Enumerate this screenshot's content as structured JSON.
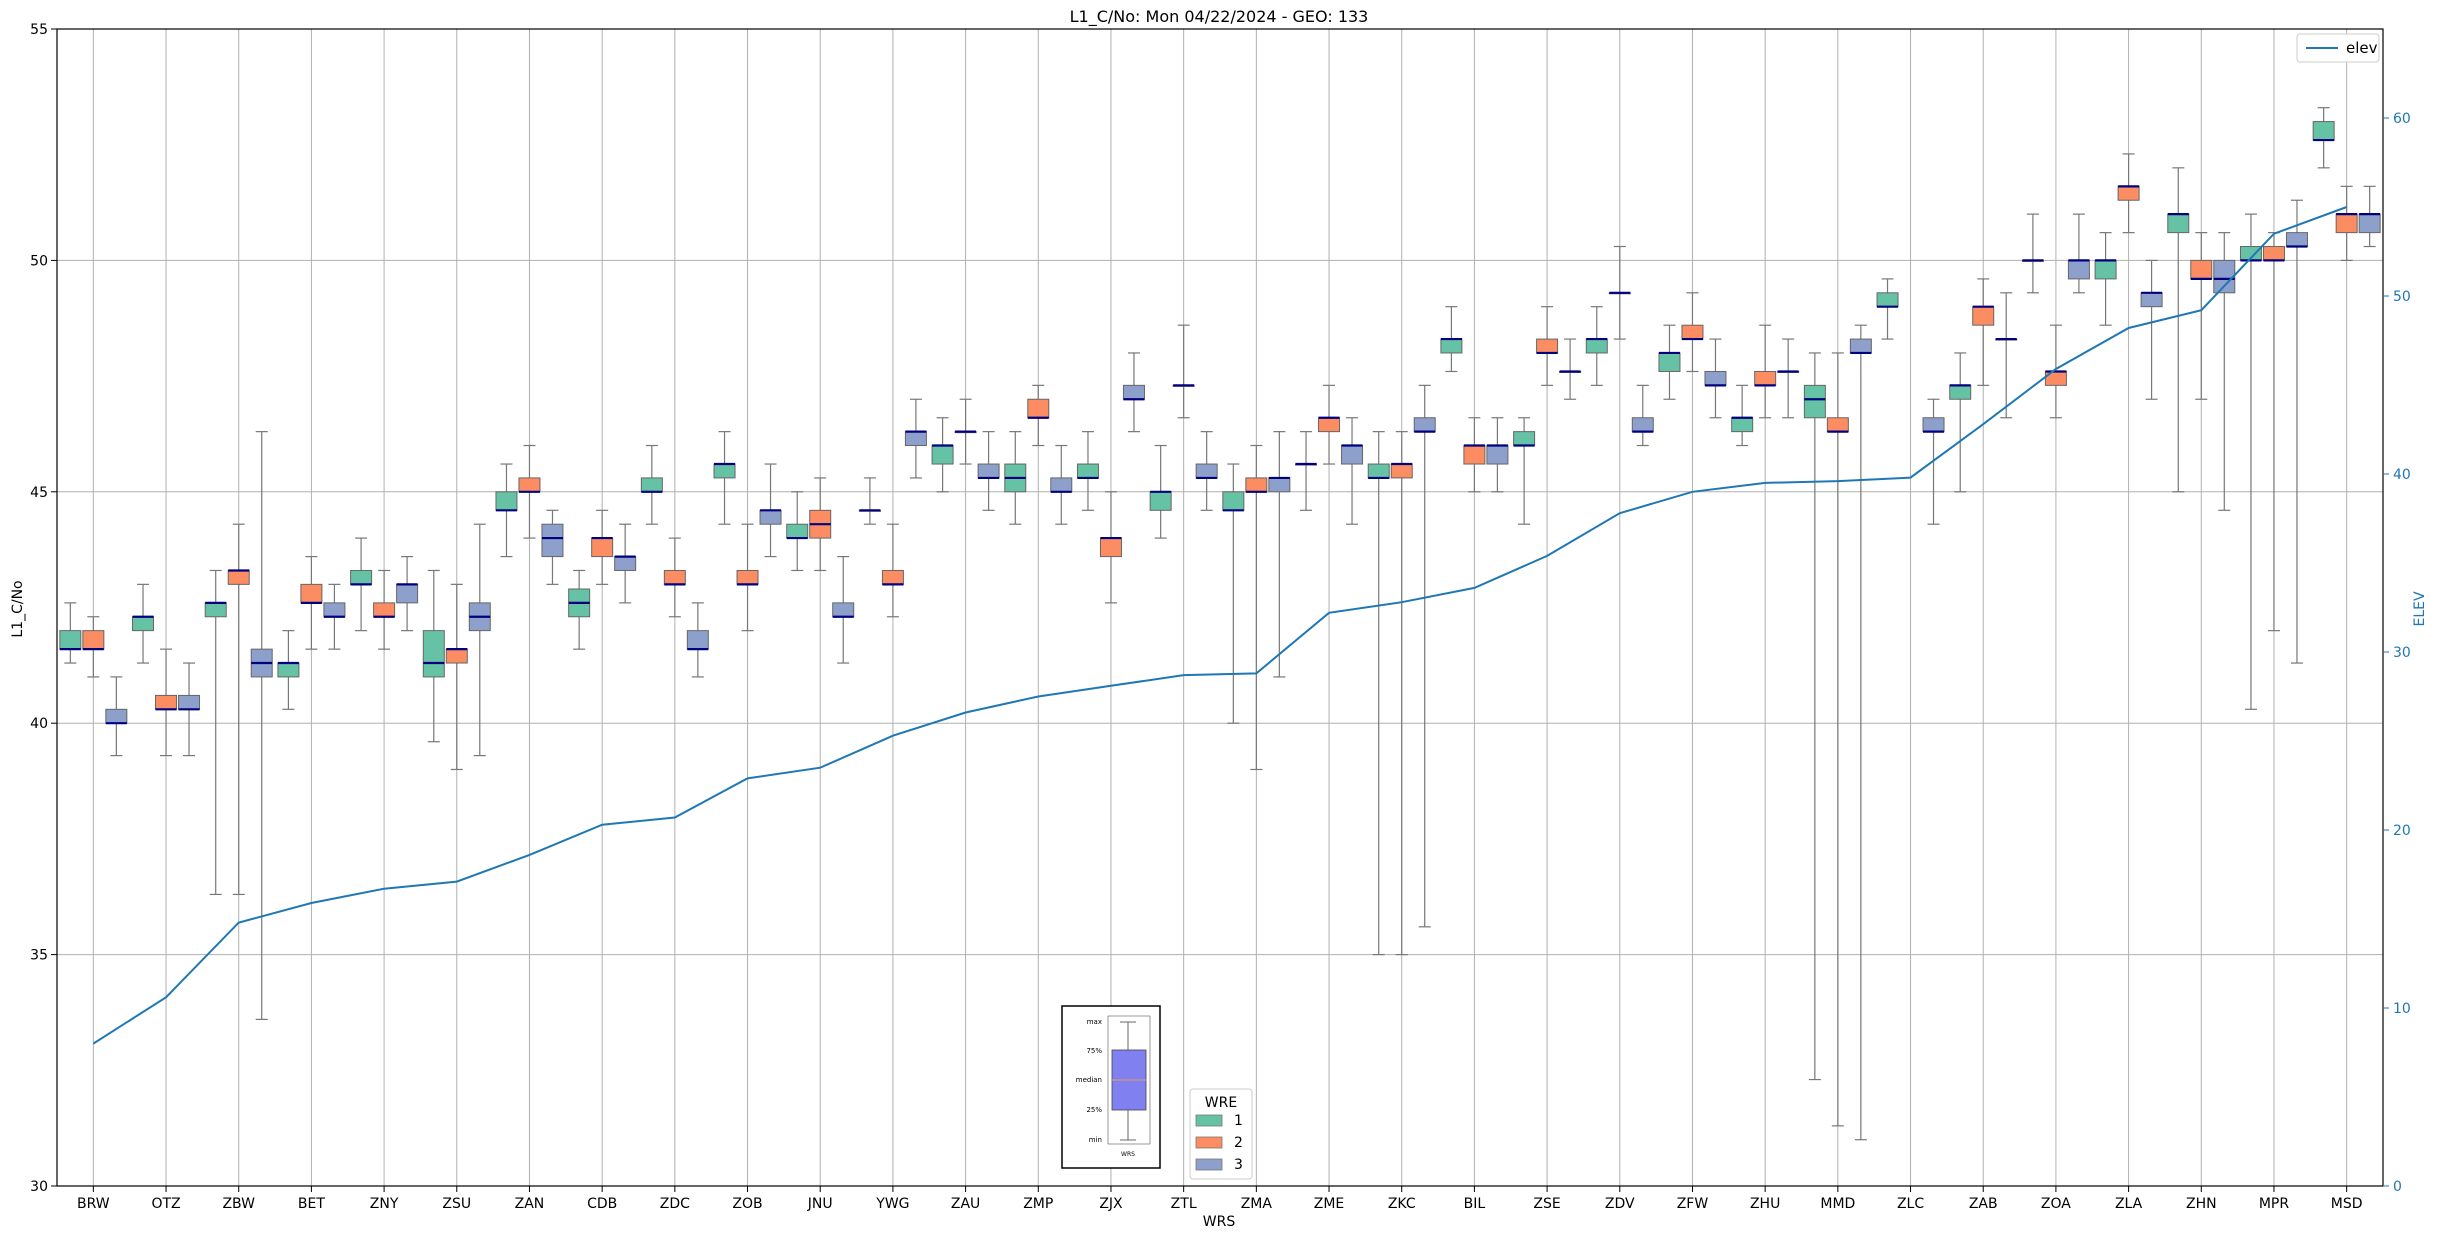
{
  "chart_data": {
    "type": "box",
    "title": "L1_C/No: Mon 04/22/2024 - GEO: 133",
    "xlabel": "WRS",
    "ylabel": "L1_C/No",
    "y2label": "ELEV",
    "ylim": [
      30,
      55
    ],
    "y2lim": [
      0,
      65
    ],
    "yticks": [
      30,
      35,
      40,
      45,
      50,
      55
    ],
    "y2ticks": [
      0,
      10,
      20,
      30,
      40,
      50,
      60
    ],
    "grid": true,
    "categories": [
      "BRW",
      "OTZ",
      "ZBW",
      "BET",
      "ZNY",
      "ZSU",
      "ZAN",
      "CDB",
      "ZDC",
      "ZOB",
      "JNU",
      "YWG",
      "ZAU",
      "ZMP",
      "ZJX",
      "ZTL",
      "ZMA",
      "ZME",
      "ZKC",
      "BIL",
      "ZSE",
      "ZDV",
      "ZFW",
      "ZHU",
      "MMD",
      "ZLC",
      "ZAB",
      "ZOA",
      "ZLA",
      "ZHN",
      "MPR",
      "MSD"
    ],
    "wre_legend": {
      "title": "WRE",
      "entries": [
        {
          "label": "1",
          "color": "#66c2a5"
        },
        {
          "label": "2",
          "color": "#fc8d62"
        },
        {
          "label": "3",
          "color": "#8da0cb"
        }
      ]
    },
    "line_legend": {
      "label": "elev",
      "color": "#1f77b4",
      "placement": "top-right"
    },
    "inset_legend": {
      "labels": [
        "max",
        "75%",
        "median",
        "25%",
        "min"
      ],
      "xlabel": "WRS"
    },
    "elevation": [
      8.0,
      10.6,
      14.8,
      15.9,
      16.7,
      17.1,
      18.6,
      20.3,
      20.7,
      22.9,
      23.5,
      25.3,
      26.6,
      27.5,
      28.1,
      28.7,
      28.8,
      32.2,
      32.8,
      33.6,
      35.4,
      37.8,
      39.0,
      39.5,
      39.6,
      39.8,
      42.8,
      45.9,
      48.2,
      49.2,
      53.5,
      55.0
    ],
    "boxes": [
      {
        "wrs": "BRW",
        "wre": 1,
        "min": 41.3,
        "q1": 41.6,
        "median": 41.6,
        "q3": 42.0,
        "max": 42.6
      },
      {
        "wrs": "BRW",
        "wre": 2,
        "min": 41.0,
        "q1": 41.6,
        "median": 41.6,
        "q3": 42.0,
        "max": 42.3
      },
      {
        "wrs": "BRW",
        "wre": 3,
        "min": 39.3,
        "q1": 40.0,
        "median": 40.0,
        "q3": 40.3,
        "max": 41.0
      },
      {
        "wrs": "OTZ",
        "wre": 1,
        "min": 41.3,
        "q1": 42.0,
        "median": 42.3,
        "q3": 42.3,
        "max": 43.0
      },
      {
        "wrs": "OTZ",
        "wre": 2,
        "min": 39.3,
        "q1": 40.3,
        "median": 40.3,
        "q3": 40.6,
        "max": 41.6
      },
      {
        "wrs": "OTZ",
        "wre": 3,
        "min": 39.3,
        "q1": 40.3,
        "median": 40.3,
        "q3": 40.6,
        "max": 41.3
      },
      {
        "wrs": "ZBW",
        "wre": 1,
        "min": 36.3,
        "q1": 42.3,
        "median": 42.6,
        "q3": 42.6,
        "max": 43.3
      },
      {
        "wrs": "ZBW",
        "wre": 2,
        "min": 36.3,
        "q1": 43.0,
        "median": 43.3,
        "q3": 43.3,
        "max": 44.3
      },
      {
        "wrs": "ZBW",
        "wre": 3,
        "min": 33.6,
        "q1": 41.0,
        "median": 41.3,
        "q3": 41.6,
        "max": 46.3
      },
      {
        "wrs": "BET",
        "wre": 1,
        "min": 40.3,
        "q1": 41.0,
        "median": 41.3,
        "q3": 41.3,
        "max": 42.0
      },
      {
        "wrs": "BET",
        "wre": 2,
        "min": 41.6,
        "q1": 42.6,
        "median": 42.6,
        "q3": 43.0,
        "max": 43.6
      },
      {
        "wrs": "BET",
        "wre": 3,
        "min": 41.6,
        "q1": 42.3,
        "median": 42.3,
        "q3": 42.6,
        "max": 43.0
      },
      {
        "wrs": "ZNY",
        "wre": 1,
        "min": 42.0,
        "q1": 43.0,
        "median": 43.0,
        "q3": 43.3,
        "max": 44.0
      },
      {
        "wrs": "ZNY",
        "wre": 2,
        "min": 41.6,
        "q1": 42.3,
        "median": 42.3,
        "q3": 42.6,
        "max": 43.3
      },
      {
        "wrs": "ZNY",
        "wre": 3,
        "min": 42.0,
        "q1": 42.6,
        "median": 43.0,
        "q3": 43.0,
        "max": 43.6
      },
      {
        "wrs": "ZSU",
        "wre": 1,
        "min": 39.6,
        "q1": 41.0,
        "median": 41.3,
        "q3": 42.0,
        "max": 43.3
      },
      {
        "wrs": "ZSU",
        "wre": 2,
        "min": 39.0,
        "q1": 41.3,
        "median": 41.6,
        "q3": 41.6,
        "max": 43.0
      },
      {
        "wrs": "ZSU",
        "wre": 3,
        "min": 39.3,
        "q1": 42.0,
        "median": 42.3,
        "q3": 42.6,
        "max": 44.3
      },
      {
        "wrs": "ZAN",
        "wre": 1,
        "min": 43.6,
        "q1": 44.6,
        "median": 44.6,
        "q3": 45.0,
        "max": 45.6
      },
      {
        "wrs": "ZAN",
        "wre": 2,
        "min": 44.0,
        "q1": 45.0,
        "median": 45.0,
        "q3": 45.3,
        "max": 46.0
      },
      {
        "wrs": "ZAN",
        "wre": 3,
        "min": 43.0,
        "q1": 43.6,
        "median": 44.0,
        "q3": 44.3,
        "max": 44.6
      },
      {
        "wrs": "CDB",
        "wre": 1,
        "min": 41.6,
        "q1": 42.3,
        "median": 42.6,
        "q3": 42.9,
        "max": 43.3
      },
      {
        "wrs": "CDB",
        "wre": 2,
        "min": 43.0,
        "q1": 43.6,
        "median": 44.0,
        "q3": 44.0,
        "max": 44.6
      },
      {
        "wrs": "CDB",
        "wre": 3,
        "min": 42.6,
        "q1": 43.3,
        "median": 43.6,
        "q3": 43.6,
        "max": 44.3
      },
      {
        "wrs": "ZDC",
        "wre": 1,
        "min": 44.3,
        "q1": 45.0,
        "median": 45.0,
        "q3": 45.3,
        "max": 46.0
      },
      {
        "wrs": "ZDC",
        "wre": 2,
        "min": 42.3,
        "q1": 43.0,
        "median": 43.0,
        "q3": 43.3,
        "max": 44.0
      },
      {
        "wrs": "ZDC",
        "wre": 3,
        "min": 41.0,
        "q1": 41.6,
        "median": 41.6,
        "q3": 42.0,
        "max": 42.6
      },
      {
        "wrs": "ZOB",
        "wre": 1,
        "min": 44.3,
        "q1": 45.3,
        "median": 45.6,
        "q3": 45.6,
        "max": 46.3
      },
      {
        "wrs": "ZOB",
        "wre": 2,
        "min": 42.0,
        "q1": 43.0,
        "median": 43.0,
        "q3": 43.3,
        "max": 44.3
      },
      {
        "wrs": "ZOB",
        "wre": 3,
        "min": 43.6,
        "q1": 44.3,
        "median": 44.6,
        "q3": 44.6,
        "max": 45.6
      },
      {
        "wrs": "JNU",
        "wre": 1,
        "min": 43.3,
        "q1": 44.0,
        "median": 44.0,
        "q3": 44.3,
        "max": 45.0
      },
      {
        "wrs": "JNU",
        "wre": 2,
        "min": 43.3,
        "q1": 44.0,
        "median": 44.3,
        "q3": 44.6,
        "max": 45.3
      },
      {
        "wrs": "JNU",
        "wre": 3,
        "min": 41.3,
        "q1": 42.3,
        "median": 42.3,
        "q3": 42.6,
        "max": 43.6
      },
      {
        "wrs": "YWG",
        "wre": 1,
        "min": 44.3,
        "q1": 44.6,
        "median": 44.6,
        "q3": 44.6,
        "max": 45.3
      },
      {
        "wrs": "YWG",
        "wre": 2,
        "min": 42.3,
        "q1": 43.0,
        "median": 43.0,
        "q3": 43.3,
        "max": 44.3
      },
      {
        "wrs": "YWG",
        "wre": 3,
        "min": 45.3,
        "q1": 46.0,
        "median": 46.3,
        "q3": 46.3,
        "max": 47.0
      },
      {
        "wrs": "ZAU",
        "wre": 1,
        "min": 45.0,
        "q1": 45.6,
        "median": 46.0,
        "q3": 46.0,
        "max": 46.6
      },
      {
        "wrs": "ZAU",
        "wre": 2,
        "min": 45.6,
        "q1": 46.3,
        "median": 46.3,
        "q3": 46.3,
        "max": 47.0
      },
      {
        "wrs": "ZAU",
        "wre": 3,
        "min": 44.6,
        "q1": 45.3,
        "median": 45.3,
        "q3": 45.6,
        "max": 46.3
      },
      {
        "wrs": "ZMP",
        "wre": 1,
        "min": 44.3,
        "q1": 45.0,
        "median": 45.3,
        "q3": 45.6,
        "max": 46.3
      },
      {
        "wrs": "ZMP",
        "wre": 2,
        "min": 46.0,
        "q1": 46.6,
        "median": 46.6,
        "q3": 47.0,
        "max": 47.3
      },
      {
        "wrs": "ZMP",
        "wre": 3,
        "min": 44.3,
        "q1": 45.0,
        "median": 45.0,
        "q3": 45.3,
        "max": 46.0
      },
      {
        "wrs": "ZJX",
        "wre": 1,
        "min": 44.6,
        "q1": 45.3,
        "median": 45.3,
        "q3": 45.6,
        "max": 46.3
      },
      {
        "wrs": "ZJX",
        "wre": 2,
        "min": 42.6,
        "q1": 43.6,
        "median": 44.0,
        "q3": 44.0,
        "max": 45.0
      },
      {
        "wrs": "ZJX",
        "wre": 3,
        "min": 46.3,
        "q1": 47.0,
        "median": 47.0,
        "q3": 47.3,
        "max": 48.0
      },
      {
        "wrs": "ZTL",
        "wre": 1,
        "min": 44.0,
        "q1": 44.6,
        "median": 45.0,
        "q3": 45.0,
        "max": 46.0
      },
      {
        "wrs": "ZTL",
        "wre": 2,
        "min": 46.6,
        "q1": 47.3,
        "median": 47.3,
        "q3": 47.3,
        "max": 48.6
      },
      {
        "wrs": "ZTL",
        "wre": 3,
        "min": 44.6,
        "q1": 45.3,
        "median": 45.3,
        "q3": 45.6,
        "max": 46.3
      },
      {
        "wrs": "ZMA",
        "wre": 1,
        "min": 40.0,
        "q1": 44.6,
        "median": 44.6,
        "q3": 45.0,
        "max": 45.6
      },
      {
        "wrs": "ZMA",
        "wre": 2,
        "min": 39.0,
        "q1": 45.0,
        "median": 45.0,
        "q3": 45.3,
        "max": 46.0
      },
      {
        "wrs": "ZMA",
        "wre": 3,
        "min": 41.0,
        "q1": 45.0,
        "median": 45.3,
        "q3": 45.3,
        "max": 46.3
      },
      {
        "wrs": "ZME",
        "wre": 1,
        "min": 44.6,
        "q1": 45.6,
        "median": 45.6,
        "q3": 45.6,
        "max": 46.3
      },
      {
        "wrs": "ZME",
        "wre": 2,
        "min": 45.6,
        "q1": 46.3,
        "median": 46.6,
        "q3": 46.6,
        "max": 47.3
      },
      {
        "wrs": "ZME",
        "wre": 3,
        "min": 44.3,
        "q1": 45.6,
        "median": 46.0,
        "q3": 46.0,
        "max": 46.6
      },
      {
        "wrs": "ZKC",
        "wre": 1,
        "min": 35.0,
        "q1": 45.3,
        "median": 45.3,
        "q3": 45.6,
        "max": 46.3
      },
      {
        "wrs": "ZKC",
        "wre": 2,
        "min": 35.0,
        "q1": 45.3,
        "median": 45.6,
        "q3": 45.6,
        "max": 46.3
      },
      {
        "wrs": "ZKC",
        "wre": 3,
        "min": 35.6,
        "q1": 46.3,
        "median": 46.3,
        "q3": 46.6,
        "max": 47.3
      },
      {
        "wrs": "BIL",
        "wre": 1,
        "min": 47.6,
        "q1": 48.0,
        "median": 48.3,
        "q3": 48.3,
        "max": 49.0
      },
      {
        "wrs": "BIL",
        "wre": 2,
        "min": 45.0,
        "q1": 45.6,
        "median": 46.0,
        "q3": 46.0,
        "max": 46.6
      },
      {
        "wrs": "BIL",
        "wre": 3,
        "min": 45.0,
        "q1": 45.6,
        "median": 46.0,
        "q3": 46.0,
        "max": 46.6
      },
      {
        "wrs": "ZSE",
        "wre": 1,
        "min": 44.3,
        "q1": 46.0,
        "median": 46.0,
        "q3": 46.3,
        "max": 46.6
      },
      {
        "wrs": "ZSE",
        "wre": 2,
        "min": 47.3,
        "q1": 48.0,
        "median": 48.0,
        "q3": 48.3,
        "max": 49.0
      },
      {
        "wrs": "ZSE",
        "wre": 3,
        "min": 47.0,
        "q1": 47.6,
        "median": 47.6,
        "q3": 47.6,
        "max": 48.3
      },
      {
        "wrs": "ZDV",
        "wre": 1,
        "min": 47.3,
        "q1": 48.0,
        "median": 48.3,
        "q3": 48.3,
        "max": 49.0
      },
      {
        "wrs": "ZDV",
        "wre": 2,
        "min": 48.3,
        "q1": 49.3,
        "median": 49.3,
        "q3": 49.3,
        "max": 50.3
      },
      {
        "wrs": "ZDV",
        "wre": 3,
        "min": 46.0,
        "q1": 46.3,
        "median": 46.3,
        "q3": 46.6,
        "max": 47.3
      },
      {
        "wrs": "ZFW",
        "wre": 1,
        "min": 47.0,
        "q1": 47.6,
        "median": 48.0,
        "q3": 48.0,
        "max": 48.6
      },
      {
        "wrs": "ZFW",
        "wre": 2,
        "min": 47.6,
        "q1": 48.3,
        "median": 48.3,
        "q3": 48.6,
        "max": 49.3
      },
      {
        "wrs": "ZFW",
        "wre": 3,
        "min": 46.6,
        "q1": 47.3,
        "median": 47.3,
        "q3": 47.6,
        "max": 48.3
      },
      {
        "wrs": "ZHU",
        "wre": 1,
        "min": 46.0,
        "q1": 46.3,
        "median": 46.6,
        "q3": 46.6,
        "max": 47.3
      },
      {
        "wrs": "ZHU",
        "wre": 2,
        "min": 46.6,
        "q1": 47.3,
        "median": 47.3,
        "q3": 47.6,
        "max": 48.6
      },
      {
        "wrs": "ZHU",
        "wre": 3,
        "min": 46.6,
        "q1": 47.6,
        "median": 47.6,
        "q3": 47.6,
        "max": 48.3
      },
      {
        "wrs": "MMD",
        "wre": 1,
        "min": 32.3,
        "q1": 46.6,
        "median": 47.0,
        "q3": 47.3,
        "max": 48.0
      },
      {
        "wrs": "MMD",
        "wre": 2,
        "min": 31.3,
        "q1": 46.3,
        "median": 46.3,
        "q3": 46.6,
        "max": 48.0
      },
      {
        "wrs": "MMD",
        "wre": 3,
        "min": 31.0,
        "q1": 48.0,
        "median": 48.0,
        "q3": 48.3,
        "max": 48.6
      },
      {
        "wrs": "ZLC",
        "wre": 1,
        "min": 48.3,
        "q1": 49.0,
        "median": 49.0,
        "q3": 49.3,
        "max": 49.6
      },
      {
        "wrs": "ZLC",
        "wre": 2,
        "min": null,
        "q1": null,
        "median": null,
        "q3": null,
        "max": null
      },
      {
        "wrs": "ZLC",
        "wre": 3,
        "min": 44.3,
        "q1": 46.3,
        "median": 46.3,
        "q3": 46.6,
        "max": 47.0
      },
      {
        "wrs": "ZAB",
        "wre": 1,
        "min": 45.0,
        "q1": 47.0,
        "median": 47.3,
        "q3": 47.3,
        "max": 48.0
      },
      {
        "wrs": "ZAB",
        "wre": 2,
        "min": 47.3,
        "q1": 48.6,
        "median": 49.0,
        "q3": 49.0,
        "max": 49.6
      },
      {
        "wrs": "ZAB",
        "wre": 3,
        "min": 46.6,
        "q1": 48.3,
        "median": 48.3,
        "q3": 48.3,
        "max": 49.3
      },
      {
        "wrs": "ZOA",
        "wre": 1,
        "min": 49.3,
        "q1": 50.0,
        "median": 50.0,
        "q3": 50.0,
        "max": 51.0
      },
      {
        "wrs": "ZOA",
        "wre": 2,
        "min": 46.6,
        "q1": 47.3,
        "median": 47.6,
        "q3": 47.6,
        "max": 48.6
      },
      {
        "wrs": "ZOA",
        "wre": 3,
        "min": 49.3,
        "q1": 49.6,
        "median": 50.0,
        "q3": 50.0,
        "max": 51.0
      },
      {
        "wrs": "ZLA",
        "wre": 1,
        "min": 48.6,
        "q1": 49.6,
        "median": 50.0,
        "q3": 50.0,
        "max": 50.6
      },
      {
        "wrs": "ZLA",
        "wre": 2,
        "min": 50.6,
        "q1": 51.3,
        "median": 51.6,
        "q3": 51.6,
        "max": 52.3
      },
      {
        "wrs": "ZLA",
        "wre": 3,
        "min": 47.0,
        "q1": 49.0,
        "median": 49.3,
        "q3": 49.3,
        "max": 50.0
      },
      {
        "wrs": "ZHN",
        "wre": 1,
        "min": 45.0,
        "q1": 50.6,
        "median": 51.0,
        "q3": 51.0,
        "max": 52.0
      },
      {
        "wrs": "ZHN",
        "wre": 2,
        "min": 47.0,
        "q1": 49.6,
        "median": 49.6,
        "q3": 50.0,
        "max": 50.6
      },
      {
        "wrs": "ZHN",
        "wre": 3,
        "min": 44.6,
        "q1": 49.3,
        "median": 49.6,
        "q3": 50.0,
        "max": 50.6
      },
      {
        "wrs": "MPR",
        "wre": 1,
        "min": 40.3,
        "q1": 50.0,
        "median": 50.0,
        "q3": 50.3,
        "max": 51.0
      },
      {
        "wrs": "MPR",
        "wre": 2,
        "min": 42.0,
        "q1": 50.0,
        "median": 50.0,
        "q3": 50.3,
        "max": 50.6
      },
      {
        "wrs": "MPR",
        "wre": 3,
        "min": 41.3,
        "q1": 50.3,
        "median": 50.3,
        "q3": 50.6,
        "max": 51.3
      },
      {
        "wrs": "MSD",
        "wre": 1,
        "min": 52.0,
        "q1": 52.6,
        "median": 52.6,
        "q3": 53.0,
        "max": 53.3
      },
      {
        "wrs": "MSD",
        "wre": 2,
        "min": 50.0,
        "q1": 50.6,
        "median": 51.0,
        "q3": 51.0,
        "max": 51.6
      },
      {
        "wrs": "MSD",
        "wre": 3,
        "min": 50.3,
        "q1": 50.6,
        "median": 51.0,
        "q3": 51.0,
        "max": 51.6
      }
    ]
  }
}
